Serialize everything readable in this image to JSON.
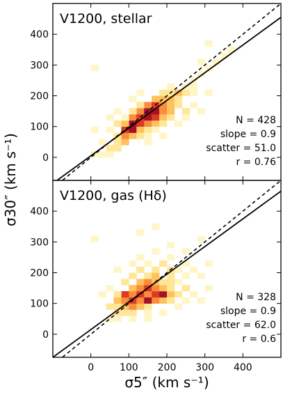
{
  "chart_data": [
    {
      "type": "heatmap",
      "title": "V1200, stellar",
      "xlabel": "σ5″ (km s⁻¹)",
      "ylabel": "σ30″ (km s⁻¹)",
      "xlim": [
        -100,
        500
      ],
      "ylim": [
        -75,
        500
      ],
      "xticks": [
        0,
        100,
        200,
        300,
        400
      ],
      "yticks": [
        0,
        100,
        200,
        300,
        400
      ],
      "bin_size": 20,
      "lines": [
        {
          "style": "dashed",
          "slope": 1.0,
          "intercept": 0
        },
        {
          "style": "solid",
          "slope": 0.9,
          "intercept": 5
        }
      ],
      "stats": [
        "N = 428",
        "slope = 0.9",
        "scatter = 51.0",
        "r = 0.76"
      ],
      "cells": [
        [
          0,
          0,
          1
        ],
        [
          20,
          0,
          1
        ],
        [
          40,
          0,
          1
        ],
        [
          40,
          20,
          2
        ],
        [
          60,
          20,
          2
        ],
        [
          60,
          40,
          2
        ],
        [
          80,
          40,
          3
        ],
        [
          80,
          60,
          4
        ],
        [
          60,
          60,
          2
        ],
        [
          100,
          60,
          3
        ],
        [
          80,
          80,
          5
        ],
        [
          100,
          80,
          6
        ],
        [
          120,
          80,
          3
        ],
        [
          140,
          80,
          2
        ],
        [
          100,
          100,
          6
        ],
        [
          120,
          100,
          5
        ],
        [
          140,
          100,
          4
        ],
        [
          160,
          100,
          3
        ],
        [
          80,
          100,
          3
        ],
        [
          60,
          100,
          2
        ],
        [
          100,
          120,
          4
        ],
        [
          120,
          120,
          5
        ],
        [
          140,
          120,
          6
        ],
        [
          160,
          120,
          5
        ],
        [
          180,
          120,
          3
        ],
        [
          200,
          120,
          2
        ],
        [
          120,
          140,
          4
        ],
        [
          140,
          140,
          6
        ],
        [
          160,
          140,
          6
        ],
        [
          180,
          140,
          4
        ],
        [
          200,
          140,
          3
        ],
        [
          140,
          160,
          4
        ],
        [
          160,
          160,
          5
        ],
        [
          180,
          160,
          4
        ],
        [
          200,
          160,
          3
        ],
        [
          220,
          160,
          2
        ],
        [
          160,
          180,
          3
        ],
        [
          180,
          180,
          3
        ],
        [
          200,
          180,
          3
        ],
        [
          220,
          180,
          2
        ],
        [
          180,
          200,
          2
        ],
        [
          200,
          200,
          2
        ],
        [
          220,
          200,
          3
        ],
        [
          240,
          200,
          2
        ],
        [
          260,
          200,
          1
        ],
        [
          200,
          220,
          1
        ],
        [
          240,
          220,
          1
        ],
        [
          260,
          240,
          1
        ],
        [
          280,
          260,
          1
        ],
        [
          300,
          280,
          1
        ],
        [
          320,
          300,
          1
        ],
        [
          340,
          320,
          1
        ],
        [
          360,
          340,
          1
        ],
        [
          300,
          200,
          1
        ],
        [
          280,
          140,
          1
        ],
        [
          40,
          120,
          1
        ],
        [
          60,
          140,
          1
        ],
        [
          100,
          180,
          1
        ],
        [
          120,
          200,
          1
        ],
        [
          240,
          120,
          1
        ],
        [
          260,
          160,
          1
        ],
        [
          20,
          40,
          1
        ],
        [
          0,
          80,
          1
        ],
        [
          300,
          360,
          1
        ],
        [
          220,
          100,
          1
        ],
        [
          240,
          140,
          2
        ],
        [
          120,
          60,
          2
        ],
        [
          140,
          60,
          1
        ],
        [
          160,
          80,
          1
        ],
        [
          180,
          100,
          2
        ],
        [
          100,
          140,
          2
        ],
        [
          80,
          120,
          1
        ],
        [
          120,
          160,
          2
        ],
        [
          260,
          220,
          1
        ],
        [
          280,
          300,
          1
        ],
        [
          40,
          80,
          1
        ],
        [
          0,
          280,
          1
        ],
        [
          140,
          40,
          1
        ],
        [
          180,
          60,
          1
        ]
      ]
    },
    {
      "type": "heatmap",
      "title": "V1200, gas (Hδ)",
      "xlabel": "σ5″ (km s⁻¹)",
      "ylabel": "σ30″ (km s⁻¹)",
      "xlim": [
        -100,
        500
      ],
      "ylim": [
        -75,
        500
      ],
      "xticks": [
        0,
        100,
        200,
        300,
        400
      ],
      "yticks": [
        0,
        100,
        200,
        300,
        400
      ],
      "bin_size": 20,
      "lines": [
        {
          "style": "dashed",
          "slope": 1.0,
          "intercept": 0
        },
        {
          "style": "solid",
          "slope": 0.9,
          "intercept": 15
        }
      ],
      "stats": [
        "N = 328",
        "slope = 0.9",
        "scatter = 62.0",
        "r = 0.6"
      ],
      "cells": [
        [
          40,
          40,
          1
        ],
        [
          60,
          40,
          1
        ],
        [
          60,
          60,
          2
        ],
        [
          80,
          60,
          2
        ],
        [
          100,
          60,
          2
        ],
        [
          40,
          80,
          2
        ],
        [
          60,
          80,
          2
        ],
        [
          80,
          80,
          3
        ],
        [
          100,
          80,
          4
        ],
        [
          120,
          80,
          3
        ],
        [
          140,
          80,
          2
        ],
        [
          60,
          100,
          3
        ],
        [
          80,
          100,
          4
        ],
        [
          100,
          100,
          5
        ],
        [
          120,
          100,
          4
        ],
        [
          140,
          100,
          6
        ],
        [
          160,
          100,
          4
        ],
        [
          180,
          100,
          3
        ],
        [
          80,
          120,
          5
        ],
        [
          100,
          120,
          4
        ],
        [
          120,
          120,
          5
        ],
        [
          140,
          120,
          4
        ],
        [
          160,
          120,
          5
        ],
        [
          180,
          120,
          6
        ],
        [
          200,
          120,
          3
        ],
        [
          220,
          120,
          2
        ],
        [
          100,
          140,
          3
        ],
        [
          120,
          140,
          4
        ],
        [
          140,
          140,
          5
        ],
        [
          160,
          140,
          4
        ],
        [
          180,
          140,
          3
        ],
        [
          200,
          140,
          2
        ],
        [
          240,
          140,
          2
        ],
        [
          80,
          160,
          2
        ],
        [
          120,
          160,
          3
        ],
        [
          140,
          160,
          4
        ],
        [
          160,
          160,
          3
        ],
        [
          180,
          160,
          2
        ],
        [
          200,
          160,
          2
        ],
        [
          220,
          160,
          1
        ],
        [
          100,
          180,
          2
        ],
        [
          140,
          180,
          2
        ],
        [
          160,
          180,
          3
        ],
        [
          200,
          180,
          2
        ],
        [
          240,
          180,
          1
        ],
        [
          280,
          180,
          1
        ],
        [
          60,
          200,
          1
        ],
        [
          120,
          200,
          2
        ],
        [
          160,
          200,
          2
        ],
        [
          200,
          200,
          2
        ],
        [
          220,
          200,
          1
        ],
        [
          260,
          200,
          1
        ],
        [
          100,
          220,
          1
        ],
        [
          140,
          220,
          1
        ],
        [
          180,
          220,
          2
        ],
        [
          240,
          220,
          1
        ],
        [
          300,
          220,
          1
        ],
        [
          120,
          240,
          1
        ],
        [
          200,
          240,
          1
        ],
        [
          160,
          260,
          1
        ],
        [
          240,
          260,
          1
        ],
        [
          200,
          280,
          1
        ],
        [
          0,
          300,
          1
        ],
        [
          280,
          300,
          1
        ],
        [
          120,
          320,
          1
        ],
        [
          160,
          340,
          1
        ],
        [
          140,
          60,
          1
        ],
        [
          200,
          100,
          2
        ],
        [
          60,
          120,
          2
        ],
        [
          40,
          140,
          1
        ],
        [
          260,
          120,
          1
        ],
        [
          280,
          100,
          1
        ],
        [
          300,
          140,
          1
        ],
        [
          20,
          120,
          1
        ],
        [
          220,
          80,
          1
        ],
        [
          180,
          60,
          1
        ],
        [
          240,
          100,
          1
        ],
        [
          100,
          40,
          1
        ],
        [
          140,
          40,
          1
        ]
      ]
    }
  ]
}
